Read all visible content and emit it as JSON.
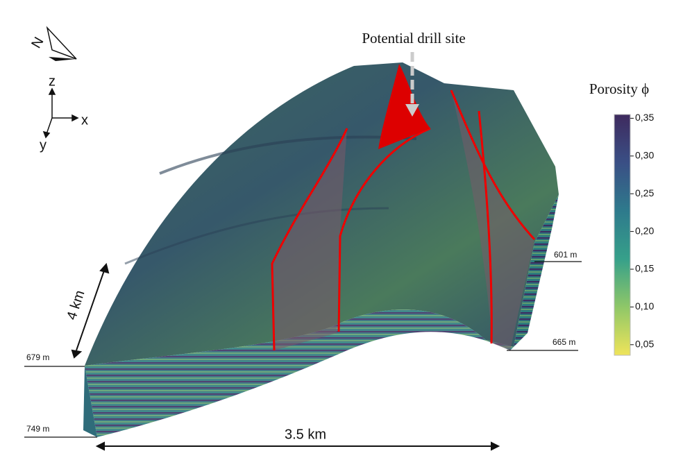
{
  "title": "Potential drill site",
  "compass": "N",
  "axes": {
    "z": "z",
    "x": "x",
    "y": "y"
  },
  "depth_labels": [
    "601 m",
    "665 m",
    "679 m",
    "749 m"
  ],
  "scale": {
    "depth_extent": "4 km",
    "width": "3.5 km"
  },
  "colorbar": {
    "label": "Porosity ϕ",
    "lim": [
      0.036,
      0.355
    ],
    "ticks": [
      {
        "value": 0.35,
        "label": "0,35"
      },
      {
        "value": 0.3,
        "label": "0,30"
      },
      {
        "value": 0.25,
        "label": "0,25"
      },
      {
        "value": 0.2,
        "label": "0,20"
      },
      {
        "value": 0.15,
        "label": "0,15"
      },
      {
        "value": 0.1,
        "label": "0,10"
      },
      {
        "value": 0.05,
        "label": "0,05"
      }
    ]
  }
}
